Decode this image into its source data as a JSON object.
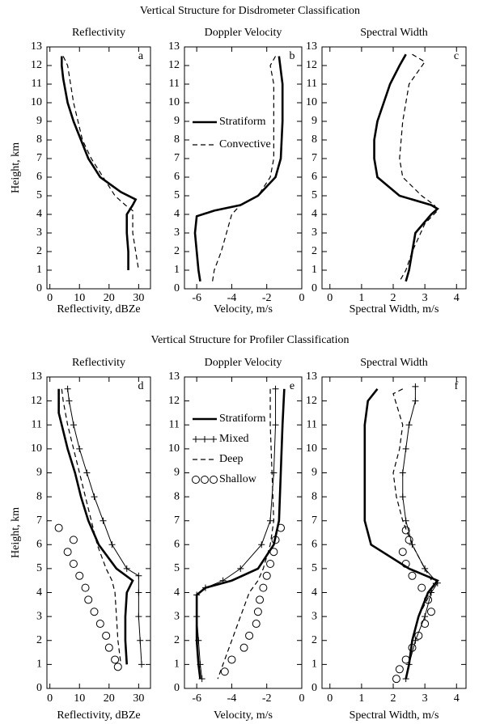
{
  "figure_titles": [
    "Vertical Structure for Disdrometer Classification",
    "Vertical Structure for Profiler Classification"
  ],
  "chart_data": [
    {
      "type": "line",
      "title": "Reflectivity",
      "label": "a",
      "xlabel": "Reflectivity, dBZe",
      "ylabel": "Height, km",
      "xlim": [
        -1,
        34
      ],
      "xticks": [
        0,
        10,
        20,
        30
      ],
      "ylim": [
        0,
        13
      ],
      "yticks": [
        0,
        1,
        2,
        3,
        4,
        5,
        6,
        7,
        8,
        9,
        10,
        11,
        12,
        13
      ],
      "series": [
        {
          "name": "Stratiform",
          "color": "#000",
          "dash": "solid",
          "marker": null,
          "x": [
            4,
            4,
            4.5,
            6,
            8,
            10.5,
            13,
            17,
            24,
            29,
            28,
            26,
            26,
            26.5,
            26.5
          ],
          "y": [
            12.5,
            12,
            11.3,
            10,
            9,
            8,
            7,
            6,
            5.2,
            4.8,
            4.5,
            4,
            3,
            2,
            1
          ]
        },
        {
          "name": "Convective",
          "color": "#000",
          "dash": "dashed",
          "marker": null,
          "x": [
            4.5,
            6,
            7,
            8,
            9.5,
            11,
            14,
            18,
            22,
            25.5,
            28,
            28,
            29,
            30
          ],
          "y": [
            12.5,
            12,
            11,
            10,
            9,
            8,
            7,
            6,
            5,
            4.5,
            4.2,
            3,
            2,
            1
          ]
        }
      ]
    },
    {
      "type": "line",
      "title": "Doppler Velocity",
      "label": "b",
      "xlabel": "Velocity, m/s",
      "xlim": [
        -6.7,
        0
      ],
      "xticks": [
        -6,
        -4,
        -2,
        0
      ],
      "ylim": [
        0,
        13
      ],
      "yticks": [
        0,
        1,
        2,
        3,
        4,
        5,
        6,
        7,
        8,
        9,
        10,
        11,
        12,
        13
      ],
      "legend": "upper left",
      "series": [
        {
          "name": "Stratiform",
          "color": "#000",
          "dash": "solid",
          "marker": null,
          "x": [
            -1.3,
            -1.1,
            -1.1,
            -1.2,
            -1.5,
            -2.5,
            -3.5,
            -5,
            -6,
            -6.1,
            -6,
            -5.9,
            -5.8
          ],
          "y": [
            12.5,
            11,
            9,
            7,
            6,
            5,
            4.5,
            4.2,
            3.9,
            3,
            2,
            1,
            0.4
          ]
        },
        {
          "name": "Convective",
          "color": "#000",
          "dash": "dashed",
          "marker": null,
          "x": [
            -1.5,
            -1.8,
            -1.6,
            -1.6,
            -1.6,
            -1.8,
            -2.5,
            -3.5,
            -4,
            -4.3,
            -4.6,
            -5,
            -5.1
          ],
          "y": [
            12.5,
            12,
            11,
            9,
            7,
            6,
            5,
            4.5,
            4,
            3,
            2,
            1,
            0.4
          ]
        }
      ]
    },
    {
      "type": "line",
      "title": "Spectral Width",
      "label": "c",
      "xlabel": "Spectral Width, m/s",
      "xlim": [
        -0.25,
        4.3
      ],
      "xticks": [
        0,
        1,
        2,
        3,
        4
      ],
      "ylim": [
        0,
        13
      ],
      "yticks": [
        0,
        1,
        2,
        3,
        4,
        5,
        6,
        7,
        8,
        9,
        10,
        11,
        12,
        13
      ],
      "series": [
        {
          "name": "Stratiform",
          "color": "#000",
          "dash": "solid",
          "marker": null,
          "x": [
            2.4,
            2.2,
            1.9,
            1.7,
            1.5,
            1.4,
            1.4,
            1.5,
            2.2,
            3.2,
            3.4,
            3.2,
            2.7,
            2.6,
            2.5,
            2.4
          ],
          "y": [
            12.6,
            12,
            11,
            10,
            9,
            8,
            7,
            6,
            5,
            4.5,
            4.3,
            4,
            3,
            2,
            1,
            0.4
          ]
        },
        {
          "name": "Convective",
          "color": "#000",
          "dash": "dashed",
          "marker": null,
          "x": [
            2.6,
            3,
            2.5,
            2.4,
            2.3,
            2.2,
            2.3,
            2.9,
            3.3,
            3.4,
            3,
            2.6,
            2.4,
            2.2
          ],
          "y": [
            12.6,
            12.2,
            11,
            10,
            9,
            7,
            6,
            5,
            4.5,
            4.2,
            3.5,
            2,
            1,
            0.4
          ]
        }
      ]
    },
    {
      "type": "line",
      "title": "Reflectivity",
      "label": "d",
      "xlabel": "Reflectivity, dBZe",
      "ylabel": "Height, km",
      "xlim": [
        -1,
        34
      ],
      "xticks": [
        0,
        10,
        20,
        30
      ],
      "ylim": [
        0,
        13
      ],
      "yticks": [
        0,
        1,
        2,
        3,
        4,
        5,
        6,
        7,
        8,
        9,
        10,
        11,
        12,
        13
      ],
      "series": [
        {
          "name": "Stratiform",
          "color": "#000",
          "dash": "solid",
          "marker": null,
          "x": [
            3,
            3,
            4,
            6,
            8.5,
            10.5,
            13,
            16.5,
            22.5,
            28,
            26,
            25.5,
            25.5,
            26
          ],
          "y": [
            12.5,
            11.5,
            11,
            10,
            9,
            8,
            7,
            6,
            5,
            4.5,
            4,
            3,
            2,
            1
          ]
        },
        {
          "name": "Mixed",
          "color": "#000",
          "dash": "thin",
          "marker": "plus",
          "x": [
            6,
            6.5,
            8,
            10,
            12.5,
            15,
            18,
            21,
            26,
            30,
            30,
            30,
            30.5,
            31
          ],
          "y": [
            12.5,
            12,
            11,
            10,
            9,
            8,
            7,
            6,
            5,
            4.7,
            4,
            3,
            2,
            1
          ]
        },
        {
          "name": "Deep",
          "color": "#000",
          "dash": "dashed",
          "marker": null,
          "x": [
            4,
            4.5,
            6,
            8,
            10,
            12,
            14,
            16,
            19,
            21,
            22,
            22.5,
            23,
            24
          ],
          "y": [
            12.5,
            12,
            11,
            10,
            9,
            8,
            7,
            6,
            5,
            4.5,
            4,
            3,
            2,
            1
          ]
        },
        {
          "name": "Shallow",
          "color": "#000",
          "dash": "none",
          "marker": "circle",
          "x": [
            3,
            8,
            6,
            8,
            10,
            12,
            13,
            15,
            17,
            19,
            20,
            22,
            23
          ],
          "y": [
            6.7,
            6.2,
            5.7,
            5.2,
            4.7,
            4.2,
            3.7,
            3.2,
            2.7,
            2.2,
            1.7,
            1.2,
            0.9
          ]
        }
      ]
    },
    {
      "type": "line",
      "title": "Doppler Velocity",
      "label": "e",
      "xlabel": "Velocity, m/s",
      "xlim": [
        -6.7,
        0
      ],
      "xticks": [
        -6,
        -4,
        -2,
        0
      ],
      "ylim": [
        0,
        13
      ],
      "yticks": [
        0,
        1,
        2,
        3,
        4,
        5,
        6,
        7,
        8,
        9,
        10,
        11,
        12,
        13
      ],
      "legend": "upper left",
      "series": [
        {
          "name": "Stratiform",
          "color": "#000",
          "dash": "solid",
          "marker": null,
          "x": [
            -1,
            -1.1,
            -1.2,
            -1.3,
            -1.6,
            -2.5,
            -4,
            -5.5,
            -6,
            -6,
            -6,
            -5.9,
            -5.8
          ],
          "y": [
            12.5,
            11,
            9,
            7,
            6,
            5,
            4.5,
            4.2,
            3.9,
            3,
            2,
            1,
            0.4
          ]
        },
        {
          "name": "Mixed",
          "color": "#000",
          "dash": "thin",
          "marker": "plus",
          "x": [
            -1.5,
            -1.5,
            -1.6,
            -1.8,
            -2.3,
            -3.5,
            -4.5,
            -5.5,
            -6,
            -6,
            -5.9,
            -5.8,
            -5.7
          ],
          "y": [
            12.5,
            11,
            9,
            7,
            6,
            5,
            4.5,
            4.2,
            3.9,
            3,
            2,
            1,
            0.4
          ]
        },
        {
          "name": "Deep",
          "color": "#000",
          "dash": "dashed",
          "marker": null,
          "x": [
            -1.8,
            -1.8,
            -1.7,
            -1.6,
            -1.8,
            -2.2,
            -2.5,
            -3,
            -3.5,
            -4,
            -4.5,
            -4.8
          ],
          "y": [
            12.5,
            11,
            9,
            7,
            6,
            5,
            4.5,
            4,
            3,
            2,
            1,
            0.4
          ]
        },
        {
          "name": "Shallow",
          "color": "#000",
          "dash": "none",
          "marker": "circle",
          "x": [
            -1.2,
            -1.5,
            -1.6,
            -1.8,
            -2,
            -2.2,
            -2.4,
            -2.5,
            -2.6,
            -3,
            -3.3,
            -4,
            -4.4
          ],
          "y": [
            6.7,
            6.2,
            5.7,
            5.2,
            4.7,
            4.2,
            3.7,
            3.2,
            2.7,
            2.2,
            1.7,
            1.2,
            0.7
          ]
        }
      ]
    },
    {
      "type": "line",
      "title": "Spectral Width",
      "label": "f",
      "xlabel": "Spectral Width, m/s",
      "xlim": [
        -0.25,
        4.3
      ],
      "xticks": [
        0,
        1,
        2,
        3,
        4
      ],
      "ylim": [
        0,
        13
      ],
      "yticks": [
        0,
        1,
        2,
        3,
        4,
        5,
        6,
        7,
        8,
        9,
        10,
        11,
        12,
        13
      ],
      "series": [
        {
          "name": "Stratiform",
          "color": "#000",
          "dash": "solid",
          "marker": null,
          "x": [
            1.5,
            1.2,
            1.1,
            1.1,
            1.1,
            1.3,
            2.5,
            3.4,
            3.1,
            2.8,
            2.6,
            2.5,
            2.4
          ],
          "y": [
            12.5,
            12,
            11,
            9,
            7,
            6,
            5,
            4.5,
            4,
            3,
            2,
            1,
            0.4
          ]
        },
        {
          "name": "Mixed",
          "color": "#000",
          "dash": "thin",
          "marker": "plus",
          "x": [
            2.7,
            2.7,
            2.5,
            2.4,
            2.3,
            2.3,
            2.4,
            2.6,
            3,
            3.4,
            3.2,
            3,
            2.7,
            2.5,
            2.4
          ],
          "y": [
            12.6,
            12,
            11,
            10,
            9,
            8,
            7,
            6,
            5,
            4.4,
            4,
            3,
            2,
            1,
            0.4
          ]
        },
        {
          "name": "Deep",
          "color": "#000",
          "dash": "dashed",
          "marker": null,
          "x": [
            2.3,
            2,
            2.3,
            2.2,
            2,
            2.1,
            2.3,
            2.6,
            3,
            3.3,
            2.8,
            2.6,
            2.5,
            2.4
          ],
          "y": [
            12.5,
            12.3,
            11,
            10,
            9,
            8,
            7,
            6,
            5,
            4.3,
            3,
            2,
            1,
            0.4
          ]
        },
        {
          "name": "Shallow",
          "color": "#000",
          "dash": "none",
          "marker": "circle",
          "x": [
            2.4,
            2.5,
            2.3,
            2.4,
            2.6,
            2.9,
            3.1,
            3.2,
            3,
            2.8,
            2.6,
            2.4,
            2.2,
            2.1
          ],
          "y": [
            6.6,
            6.2,
            5.7,
            5.2,
            4.7,
            4.2,
            3.7,
            3.2,
            2.7,
            2.2,
            1.7,
            1.2,
            0.8,
            0.4
          ]
        }
      ]
    }
  ]
}
